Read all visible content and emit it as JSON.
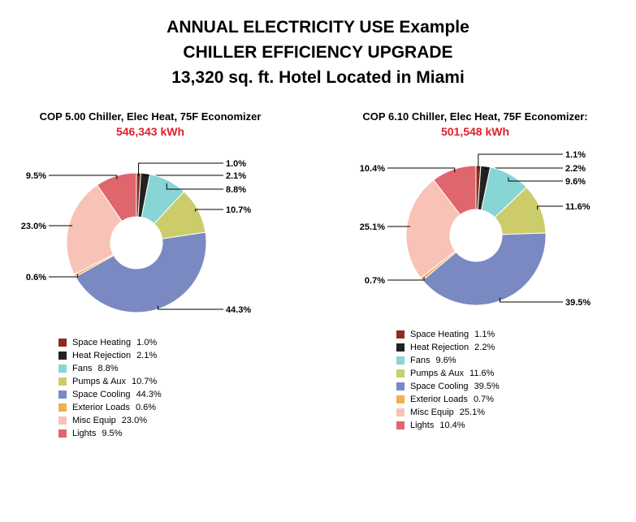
{
  "title_lines": [
    "ANNUAL ELECTRICITY USE Example",
    "CHILLER EFFICIENCY UPGRADE",
    "13,320 sq. ft. Hotel Located in Miami"
  ],
  "colors": {
    "space_heating": "#8b2e22",
    "heat_rejection": "#222222",
    "fans": "#88d5d6",
    "pumps_aux": "#cccd6a",
    "space_cooling": "#7b89c2",
    "exterior_loads": "#f0b052",
    "misc_equip": "#f8c3b6",
    "lights": "#e0666e"
  },
  "chart_data": [
    {
      "type": "pie",
      "subtitle": "COP 5.00 Chiller, Elec Heat, 75F Economizer",
      "total": "546,343 kWh",
      "categories": [
        "Space Heating",
        "Heat Rejection",
        "Fans",
        "Pumps & Aux",
        "Space Cooling",
        "Exterior Loads",
        "Misc Equip",
        "Lights"
      ],
      "values": [
        1.0,
        2.1,
        8.8,
        10.7,
        44.3,
        0.6,
        23.0,
        9.5
      ],
      "labels": [
        "1.0%",
        "2.1%",
        "8.8%",
        "10.7%",
        "44.3%",
        "0.6%",
        "23.0%",
        "9.5%"
      ],
      "legend_values": [
        "1.0%",
        "2.1%",
        "8.8%",
        "10.7%",
        "44.3%",
        "0.6%",
        "23.0%",
        "9.5%"
      ],
      "legend": "bottom"
    },
    {
      "type": "pie",
      "subtitle": "COP 6.10 Chiller, Elec Heat, 75F Economizer:",
      "total": "501,548 kWh",
      "categories": [
        "Space Heating",
        "Heat Rejection",
        "Fans",
        "Pumps & Aux",
        "Space Cooling",
        "Exterior Loads",
        "Misc Equip",
        "Lights"
      ],
      "values": [
        1.1,
        2.2,
        9.6,
        11.6,
        39.5,
        0.7,
        25.1,
        10.4
      ],
      "labels": [
        "1.1%",
        "2.2%",
        "9.6%",
        "11.6%",
        "39.5%",
        "0.7%",
        "25.1%",
        "10.4%"
      ],
      "legend_values": [
        "1.1%",
        "2.2%",
        "9.6%",
        "11.6%",
        "39.5%",
        "0.7%",
        "25.1%",
        "10.4%"
      ],
      "legend": "bottom"
    }
  ]
}
